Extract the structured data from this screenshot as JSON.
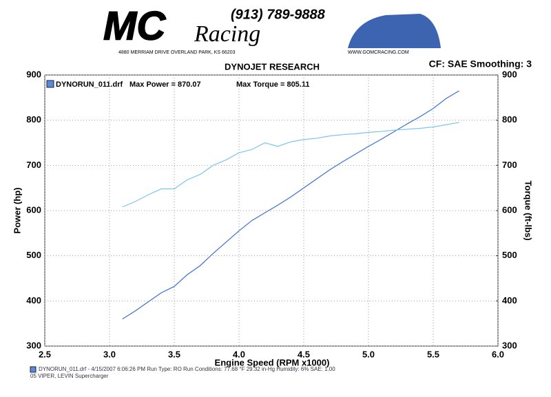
{
  "header": {
    "phone": "(913) 789-9888",
    "logo_mc": "MC",
    "logo_racing": "Racing",
    "address": "4880 MERRIAM DRIVE   OVERLAND PARK, KS 66203",
    "website": "WWW.GOMCRACING.COM"
  },
  "chart_data": {
    "type": "line",
    "title": "DYNOJET RESEARCH",
    "annotations": [
      "CF: SAE  Smoothing: 3",
      "Max Power = 870.07",
      "Max Torque = 805.11"
    ],
    "x_label": "Engine Speed (RPM x1000)",
    "y_label": "Power (hp)",
    "y2_label": "Torque (ft-lbs)",
    "x": [
      3.1,
      3.2,
      3.3,
      3.4,
      3.5,
      3.6,
      3.7,
      3.8,
      3.9,
      4.0,
      4.1,
      4.2,
      4.3,
      4.4,
      4.5,
      4.6,
      4.7,
      4.8,
      4.9,
      5.0,
      5.1,
      5.2,
      5.3,
      5.4,
      5.5,
      5.6,
      5.7
    ],
    "series": [
      {
        "name": "DYNORUN_011.drf",
        "color": "#3a6fd0",
        "values": [
          360,
          378,
          398,
          418,
          432,
          458,
          478,
          505,
          530,
          555,
          578,
          595,
          612,
          630,
          650,
          670,
          690,
          708,
          725,
          742,
          758,
          775,
          792,
          808,
          826,
          848,
          865
        ]
      },
      {
        "color": "#7cc4ee",
        "axis": "y2",
        "values": [
          608,
          620,
          635,
          648,
          648,
          668,
          680,
          700,
          712,
          728,
          735,
          750,
          742,
          752,
          757,
          760,
          765,
          768,
          770,
          773,
          775,
          778,
          780,
          782,
          785,
          790,
          795
        ]
      }
    ],
    "xlim": [
      2.5,
      6.0
    ],
    "xticks": [
      2.5,
      {
        "value": 3,
        "label": "3.0"
      },
      3.5,
      {
        "value": 4,
        "label": "4.0"
      },
      4.5,
      {
        "value": 5,
        "label": "5.0"
      },
      5.5,
      {
        "value": 6,
        "label": "6.0"
      }
    ],
    "ylim": [
      300,
      900
    ],
    "yticks": [
      300,
      400,
      500,
      600,
      700,
      800,
      900
    ],
    "y2lim": [
      300,
      900
    ],
    "y2ticks": [
      300,
      400,
      500,
      600,
      700,
      800,
      900
    ],
    "grid": true
  },
  "footer": {
    "line1": "DYNORUN_011.drf - 4/15/2007 6:06:26 PM   Run Type: RO   Run Conditions: 77.68 °F  29.32 in-Hg   Humidity: 6%   SAE: 1.00",
    "line2": "05 VIPER, LEVIN Supercharger"
  }
}
